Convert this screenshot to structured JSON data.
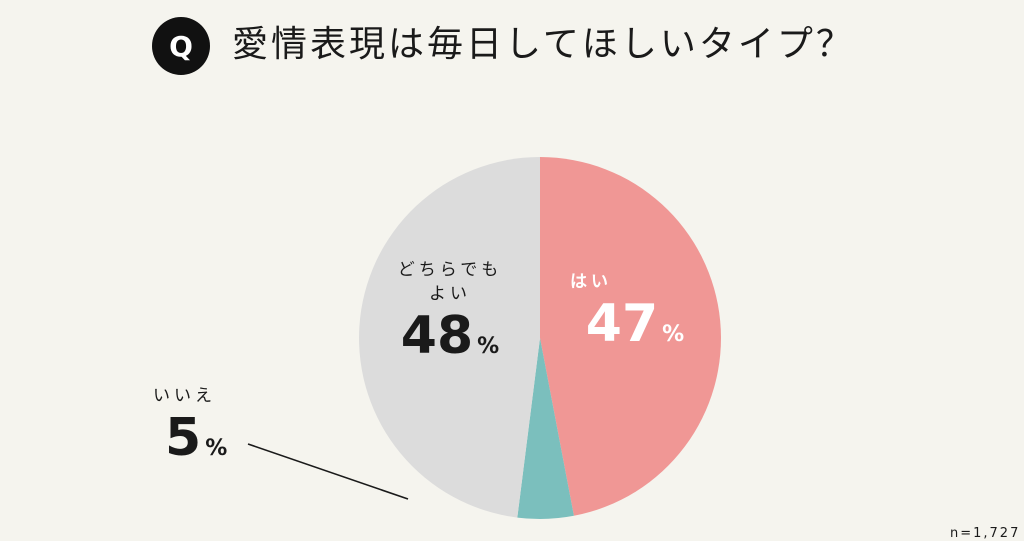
{
  "header": {
    "badge": "Q",
    "question": "愛情表現は毎日してほしいタイプ？"
  },
  "sample_size": "n=1,727",
  "chart_data": {
    "type": "pie",
    "title": "愛情表現は毎日してほしいタイプ？",
    "unit": "%",
    "slices": [
      {
        "label": "はい",
        "value": 47,
        "display": "47",
        "color": "#f09795"
      },
      {
        "label": "いいえ",
        "value": 5,
        "display": "5",
        "color": "#7bbfbd"
      },
      {
        "label": "どちらでもよい",
        "label_lines": [
          "どちらでも",
          "よい"
        ],
        "value": 48,
        "display": "48",
        "color": "#dcdcdc"
      }
    ]
  }
}
